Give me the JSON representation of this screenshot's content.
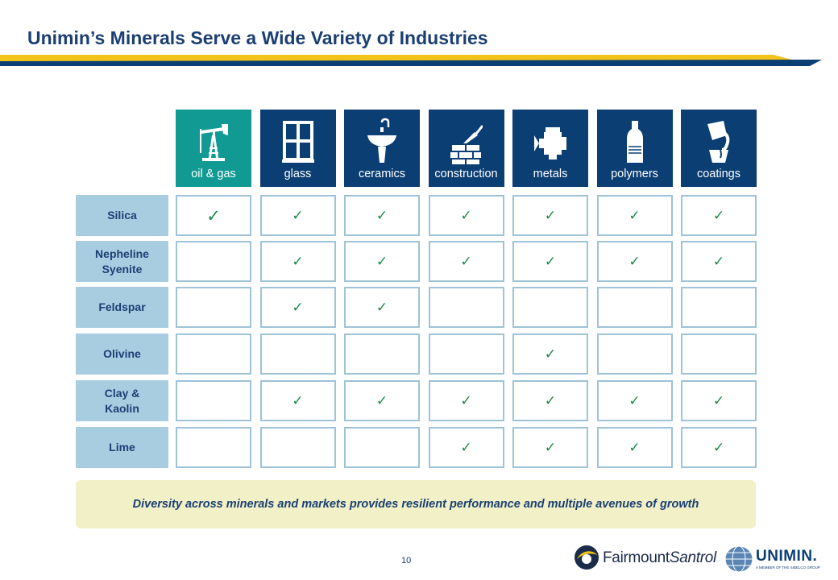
{
  "slide": {
    "title": "Unimin’s Minerals Serve a Wide Variety of Industries",
    "banner": "Diversity across minerals and markets provides resilient performance and multiple avenues of growth",
    "page_number": "10"
  },
  "colors": {
    "navy": "#0b3e73",
    "teal": "#119a93",
    "row_label_bg": "#a9cde0",
    "cell_border": "#9fc3d7",
    "check": "#1a8a49",
    "banner_bg": "#f1f0c6",
    "accent_gold": "#f2c318"
  },
  "industries": [
    {
      "label": "oil & gas",
      "icon": "oil-pump-icon"
    },
    {
      "label": "glass",
      "icon": "window-icon"
    },
    {
      "label": "ceramics",
      "icon": "sink-icon"
    },
    {
      "label": "construction",
      "icon": "brick-trowel-icon"
    },
    {
      "label": "metals",
      "icon": "engine-icon"
    },
    {
      "label": "polymers",
      "icon": "bottle-icon"
    },
    {
      "label": "coatings",
      "icon": "paint-pour-icon"
    }
  ],
  "check_symbol": "✓",
  "minerals": [
    {
      "name": "Silica",
      "checks": [
        true,
        true,
        true,
        true,
        true,
        true,
        true
      ]
    },
    {
      "name": "Nepheline\nSyenite",
      "checks": [
        false,
        true,
        true,
        true,
        true,
        true,
        true
      ]
    },
    {
      "name": "Feldspar",
      "checks": [
        false,
        true,
        true,
        false,
        false,
        false,
        false
      ]
    },
    {
      "name": "Olivine",
      "checks": [
        false,
        false,
        false,
        false,
        true,
        false,
        false
      ]
    },
    {
      "name": "Clay &\nKaolin",
      "checks": [
        false,
        true,
        true,
        true,
        true,
        true,
        true
      ]
    },
    {
      "name": "Lime",
      "checks": [
        false,
        false,
        false,
        true,
        true,
        true,
        true
      ]
    }
  ],
  "logos": {
    "fairmount_a": "Fairmount",
    "fairmount_b": "Santrol",
    "unimin": "UNIMIN.",
    "unimin_tagline": "A MEMBER OF THE SIBELCO GROUP"
  }
}
